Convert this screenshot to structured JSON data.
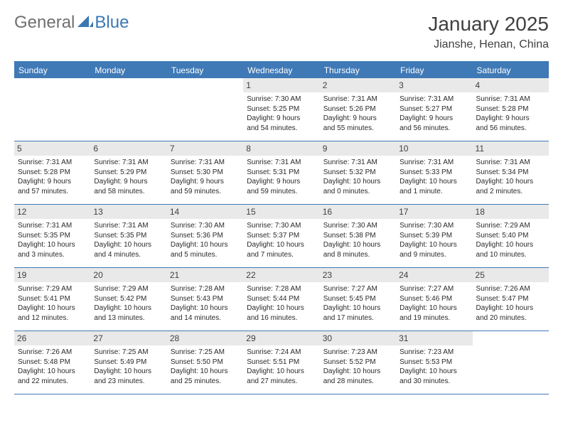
{
  "logo": {
    "general": "General",
    "blue": "Blue"
  },
  "title": "January 2025",
  "location": "Jianshe, Henan, China",
  "colors": {
    "header_blue": "#3f79b6",
    "daynum_bg": "#e9e9e9",
    "text": "#2a2a2a",
    "title_text": "#3f3f3f",
    "logo_general": "#6f6f6f",
    "logo_blue": "#3a78b5"
  },
  "weekdays": [
    "Sunday",
    "Monday",
    "Tuesday",
    "Wednesday",
    "Thursday",
    "Friday",
    "Saturday"
  ],
  "weeks": [
    [
      {
        "n": "",
        "lines": []
      },
      {
        "n": "",
        "lines": []
      },
      {
        "n": "",
        "lines": []
      },
      {
        "n": "1",
        "lines": [
          "Sunrise: 7:30 AM",
          "Sunset: 5:25 PM",
          "Daylight: 9 hours",
          "and 54 minutes."
        ]
      },
      {
        "n": "2",
        "lines": [
          "Sunrise: 7:31 AM",
          "Sunset: 5:26 PM",
          "Daylight: 9 hours",
          "and 55 minutes."
        ]
      },
      {
        "n": "3",
        "lines": [
          "Sunrise: 7:31 AM",
          "Sunset: 5:27 PM",
          "Daylight: 9 hours",
          "and 56 minutes."
        ]
      },
      {
        "n": "4",
        "lines": [
          "Sunrise: 7:31 AM",
          "Sunset: 5:28 PM",
          "Daylight: 9 hours",
          "and 56 minutes."
        ]
      }
    ],
    [
      {
        "n": "5",
        "lines": [
          "Sunrise: 7:31 AM",
          "Sunset: 5:28 PM",
          "Daylight: 9 hours",
          "and 57 minutes."
        ]
      },
      {
        "n": "6",
        "lines": [
          "Sunrise: 7:31 AM",
          "Sunset: 5:29 PM",
          "Daylight: 9 hours",
          "and 58 minutes."
        ]
      },
      {
        "n": "7",
        "lines": [
          "Sunrise: 7:31 AM",
          "Sunset: 5:30 PM",
          "Daylight: 9 hours",
          "and 59 minutes."
        ]
      },
      {
        "n": "8",
        "lines": [
          "Sunrise: 7:31 AM",
          "Sunset: 5:31 PM",
          "Daylight: 9 hours",
          "and 59 minutes."
        ]
      },
      {
        "n": "9",
        "lines": [
          "Sunrise: 7:31 AM",
          "Sunset: 5:32 PM",
          "Daylight: 10 hours",
          "and 0 minutes."
        ]
      },
      {
        "n": "10",
        "lines": [
          "Sunrise: 7:31 AM",
          "Sunset: 5:33 PM",
          "Daylight: 10 hours",
          "and 1 minute."
        ]
      },
      {
        "n": "11",
        "lines": [
          "Sunrise: 7:31 AM",
          "Sunset: 5:34 PM",
          "Daylight: 10 hours",
          "and 2 minutes."
        ]
      }
    ],
    [
      {
        "n": "12",
        "lines": [
          "Sunrise: 7:31 AM",
          "Sunset: 5:35 PM",
          "Daylight: 10 hours",
          "and 3 minutes."
        ]
      },
      {
        "n": "13",
        "lines": [
          "Sunrise: 7:31 AM",
          "Sunset: 5:35 PM",
          "Daylight: 10 hours",
          "and 4 minutes."
        ]
      },
      {
        "n": "14",
        "lines": [
          "Sunrise: 7:30 AM",
          "Sunset: 5:36 PM",
          "Daylight: 10 hours",
          "and 5 minutes."
        ]
      },
      {
        "n": "15",
        "lines": [
          "Sunrise: 7:30 AM",
          "Sunset: 5:37 PM",
          "Daylight: 10 hours",
          "and 7 minutes."
        ]
      },
      {
        "n": "16",
        "lines": [
          "Sunrise: 7:30 AM",
          "Sunset: 5:38 PM",
          "Daylight: 10 hours",
          "and 8 minutes."
        ]
      },
      {
        "n": "17",
        "lines": [
          "Sunrise: 7:30 AM",
          "Sunset: 5:39 PM",
          "Daylight: 10 hours",
          "and 9 minutes."
        ]
      },
      {
        "n": "18",
        "lines": [
          "Sunrise: 7:29 AM",
          "Sunset: 5:40 PM",
          "Daylight: 10 hours",
          "and 10 minutes."
        ]
      }
    ],
    [
      {
        "n": "19",
        "lines": [
          "Sunrise: 7:29 AM",
          "Sunset: 5:41 PM",
          "Daylight: 10 hours",
          "and 12 minutes."
        ]
      },
      {
        "n": "20",
        "lines": [
          "Sunrise: 7:29 AM",
          "Sunset: 5:42 PM",
          "Daylight: 10 hours",
          "and 13 minutes."
        ]
      },
      {
        "n": "21",
        "lines": [
          "Sunrise: 7:28 AM",
          "Sunset: 5:43 PM",
          "Daylight: 10 hours",
          "and 14 minutes."
        ]
      },
      {
        "n": "22",
        "lines": [
          "Sunrise: 7:28 AM",
          "Sunset: 5:44 PM",
          "Daylight: 10 hours",
          "and 16 minutes."
        ]
      },
      {
        "n": "23",
        "lines": [
          "Sunrise: 7:27 AM",
          "Sunset: 5:45 PM",
          "Daylight: 10 hours",
          "and 17 minutes."
        ]
      },
      {
        "n": "24",
        "lines": [
          "Sunrise: 7:27 AM",
          "Sunset: 5:46 PM",
          "Daylight: 10 hours",
          "and 19 minutes."
        ]
      },
      {
        "n": "25",
        "lines": [
          "Sunrise: 7:26 AM",
          "Sunset: 5:47 PM",
          "Daylight: 10 hours",
          "and 20 minutes."
        ]
      }
    ],
    [
      {
        "n": "26",
        "lines": [
          "Sunrise: 7:26 AM",
          "Sunset: 5:48 PM",
          "Daylight: 10 hours",
          "and 22 minutes."
        ]
      },
      {
        "n": "27",
        "lines": [
          "Sunrise: 7:25 AM",
          "Sunset: 5:49 PM",
          "Daylight: 10 hours",
          "and 23 minutes."
        ]
      },
      {
        "n": "28",
        "lines": [
          "Sunrise: 7:25 AM",
          "Sunset: 5:50 PM",
          "Daylight: 10 hours",
          "and 25 minutes."
        ]
      },
      {
        "n": "29",
        "lines": [
          "Sunrise: 7:24 AM",
          "Sunset: 5:51 PM",
          "Daylight: 10 hours",
          "and 27 minutes."
        ]
      },
      {
        "n": "30",
        "lines": [
          "Sunrise: 7:23 AM",
          "Sunset: 5:52 PM",
          "Daylight: 10 hours",
          "and 28 minutes."
        ]
      },
      {
        "n": "31",
        "lines": [
          "Sunrise: 7:23 AM",
          "Sunset: 5:53 PM",
          "Daylight: 10 hours",
          "and 30 minutes."
        ]
      },
      {
        "n": "",
        "lines": []
      }
    ]
  ]
}
